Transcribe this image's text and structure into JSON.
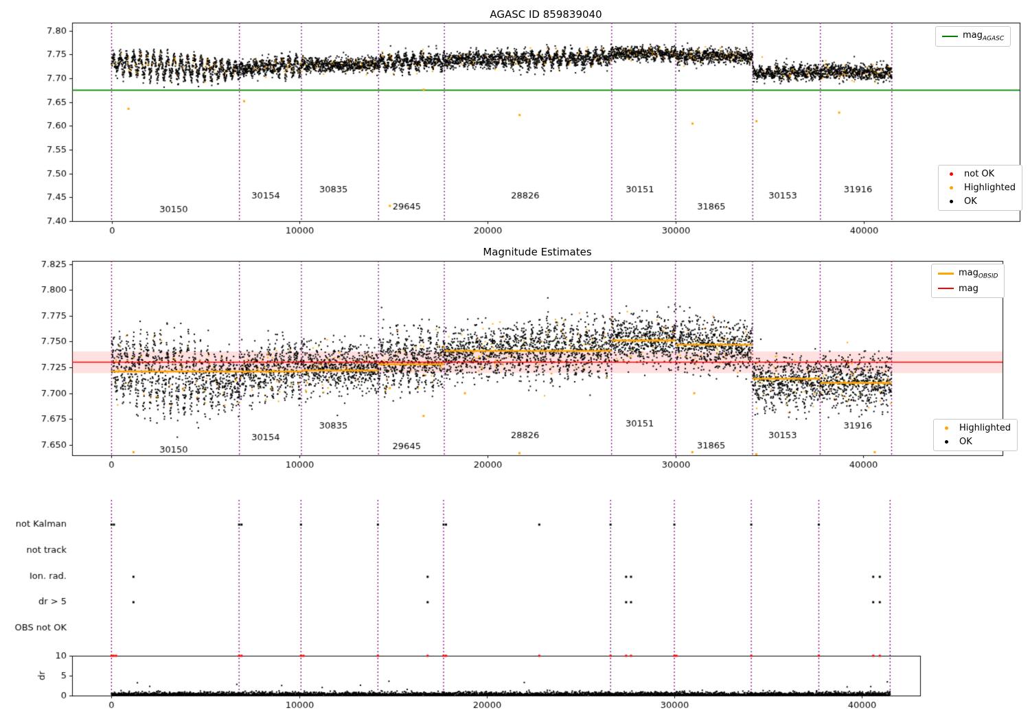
{
  "chart_data": [
    {
      "type": "scatter",
      "title": "AGASC ID 859839040",
      "xlim": [
        -2100,
        48300
      ],
      "ylim": [
        7.4,
        7.817
      ],
      "xticks": [
        0,
        10000,
        20000,
        30000,
        40000
      ],
      "xtick_labels": [
        "0",
        "10000",
        "20000",
        "30000",
        "40000"
      ],
      "yticks": [
        7.4,
        7.45,
        7.5,
        7.55,
        7.6,
        7.65,
        7.7,
        7.75,
        7.8
      ],
      "ytick_labels": [
        "7.40",
        "7.45",
        "7.50",
        "7.55",
        "7.60",
        "7.65",
        "7.70",
        "7.75",
        "7.80"
      ],
      "colors": {
        "ok": "#000000",
        "highlighted": "#ffa500",
        "not_ok": "#ff0000",
        "boundary": "#800080"
      },
      "ref_line": {
        "label": "mag",
        "sub": "AGASC",
        "value": 7.675,
        "color": "#008000"
      },
      "segments": [
        {
          "obsid": "30150",
          "start": 0,
          "end": 6800,
          "mean": 7.732,
          "trend": -0.016,
          "osc_amp": 0.022,
          "osc_wavelength": 360,
          "noise": 0.008,
          "label_x": 3300,
          "label_y": 7.423
        },
        {
          "obsid": "30154",
          "start": 6800,
          "end": 10100,
          "mean": 7.72,
          "trend": 0.008,
          "osc_amp": 0.016,
          "osc_wavelength": 360,
          "noise": 0.008,
          "label_x": 8200,
          "label_y": 7.452
        },
        {
          "obsid": "30835",
          "start": 10100,
          "end": 14200,
          "mean": 7.728,
          "trend": 0,
          "osc_amp": 0.006,
          "osc_wavelength": 420,
          "noise": 0.0075,
          "label_x": 11800,
          "label_y": 7.466
        },
        {
          "obsid": "29645",
          "start": 14200,
          "end": 17700,
          "mean": 7.733,
          "trend": 0.004,
          "osc_amp": 0.01,
          "osc_wavelength": 420,
          "noise": 0.008,
          "label_x": 15700,
          "label_y": 7.43
        },
        {
          "obsid": "28826",
          "start": 17700,
          "end": 26600,
          "mean": 7.738,
          "trend": 0.006,
          "osc_amp": 0.01,
          "osc_wavelength": 420,
          "noise": 0.008,
          "label_x": 22000,
          "label_y": 7.452
        },
        {
          "obsid": "30151",
          "start": 26600,
          "end": 30000,
          "mean": 7.753,
          "trend": -0.002,
          "osc_amp": 0.008,
          "osc_wavelength": 420,
          "noise": 0.007,
          "label_x": 28100,
          "label_y": 7.466
        },
        {
          "obsid": "31865",
          "start": 30000,
          "end": 34100,
          "mean": 7.749,
          "trend": -0.004,
          "osc_amp": 0.01,
          "osc_wavelength": 420,
          "noise": 0.008,
          "label_x": 31900,
          "label_y": 7.43
        },
        {
          "obsid": "30153",
          "start": 34100,
          "end": 37700,
          "mean": 7.712,
          "trend": 0,
          "osc_amp": 0.006,
          "osc_wavelength": 420,
          "noise": 0.007,
          "label_x": 35700,
          "label_y": 7.452
        },
        {
          "obsid": "31916",
          "start": 37700,
          "end": 41500,
          "mean": 7.714,
          "trend": -0.002,
          "osc_amp": 0.008,
          "osc_wavelength": 420,
          "noise": 0.008,
          "label_x": 39700,
          "label_y": 7.466
        }
      ],
      "highlight_outliers": [
        [
          900,
          7.636
        ],
        [
          7050,
          7.652
        ],
        [
          14800,
          7.432
        ],
        [
          16600,
          7.676
        ],
        [
          21700,
          7.623
        ],
        [
          30900,
          7.605
        ],
        [
          34300,
          7.61
        ],
        [
          38700,
          7.628
        ]
      ],
      "legend_top": [
        {
          "marker": "line",
          "color": "#008000",
          "label": "mag",
          "sub": "AGASC",
          "thick": false
        }
      ],
      "legend_bottom": [
        {
          "marker": "dot",
          "color": "#ff0000",
          "label": "not OK"
        },
        {
          "marker": "dot",
          "color": "#ffa500",
          "label": "Highlighted"
        },
        {
          "marker": "dot",
          "color": "#000000",
          "label": "OK"
        }
      ]
    },
    {
      "type": "scatter",
      "title": "Magnitude Estimates",
      "xlim": [
        -2100,
        47400
      ],
      "ylim": [
        7.64,
        7.828
      ],
      "xticks": [
        0,
        10000,
        20000,
        30000,
        40000
      ],
      "xtick_labels": [
        "0",
        "10000",
        "20000",
        "30000",
        "40000"
      ],
      "yticks": [
        7.65,
        7.675,
        7.7,
        7.725,
        7.75,
        7.775,
        7.8,
        7.825
      ],
      "ytick_labels": [
        "7.650",
        "7.675",
        "7.700",
        "7.725",
        "7.750",
        "7.775",
        "7.800",
        "7.825"
      ],
      "colors": {
        "ok": "#000000",
        "highlighted": "#ffa500",
        "boundary": "#800080"
      },
      "mag_line": {
        "label": "mag",
        "value": 7.73,
        "color": "#ff0000"
      },
      "mag_band": [
        7.7195,
        7.7405
      ],
      "mag_band_color": "rgba(255,0,0,0.12)",
      "mag_obsid_color": "#ffa500",
      "segments": [
        {
          "obsid": "30150",
          "start": 0,
          "end": 6800,
          "mean": 7.726,
          "mag": 7.721,
          "trend": -0.018,
          "osc_amp": 0.024,
          "osc_wavelength": 360,
          "noise": 0.012,
          "label_x": 3300,
          "label_y": 7.645
        },
        {
          "obsid": "30154",
          "start": 6800,
          "end": 10100,
          "mean": 7.718,
          "mag": 7.721,
          "trend": 0.008,
          "osc_amp": 0.018,
          "osc_wavelength": 360,
          "noise": 0.012,
          "label_x": 8200,
          "label_y": 7.657
        },
        {
          "obsid": "30835",
          "start": 10100,
          "end": 14200,
          "mean": 7.725,
          "mag": 7.722,
          "trend": 0,
          "osc_amp": 0.008,
          "osc_wavelength": 420,
          "noise": 0.011,
          "label_x": 11800,
          "label_y": 7.668
        },
        {
          "obsid": "29645",
          "start": 14200,
          "end": 17700,
          "mean": 7.73,
          "mag": 7.728,
          "trend": 0.004,
          "osc_amp": 0.012,
          "osc_wavelength": 420,
          "noise": 0.012,
          "label_x": 15700,
          "label_y": 7.648
        },
        {
          "obsid": "28826",
          "start": 17700,
          "end": 26600,
          "mean": 7.738,
          "mag": 7.741,
          "trend": 0.006,
          "osc_amp": 0.012,
          "osc_wavelength": 420,
          "noise": 0.012,
          "label_x": 22000,
          "label_y": 7.659
        },
        {
          "obsid": "30151",
          "start": 26600,
          "end": 30000,
          "mean": 7.752,
          "mag": 7.751,
          "trend": -0.002,
          "osc_amp": 0.01,
          "osc_wavelength": 420,
          "noise": 0.011,
          "label_x": 28100,
          "label_y": 7.67
        },
        {
          "obsid": "31865",
          "start": 30000,
          "end": 34100,
          "mean": 7.748,
          "mag": 7.747,
          "trend": -0.004,
          "osc_amp": 0.012,
          "osc_wavelength": 420,
          "noise": 0.012,
          "label_x": 31900,
          "label_y": 7.649
        },
        {
          "obsid": "30153",
          "start": 34100,
          "end": 37700,
          "mean": 7.71,
          "mag": 7.714,
          "trend": 0,
          "osc_amp": 0.008,
          "osc_wavelength": 420,
          "noise": 0.011,
          "label_x": 35700,
          "label_y": 7.659
        },
        {
          "obsid": "31916",
          "start": 37700,
          "end": 41500,
          "mean": 7.712,
          "mag": 7.71,
          "trend": -0.002,
          "osc_amp": 0.01,
          "osc_wavelength": 420,
          "noise": 0.012,
          "label_x": 39700,
          "label_y": 7.668
        }
      ],
      "highlight_outliers": [
        [
          1170,
          7.643
        ],
        [
          16600,
          7.678
        ],
        [
          18800,
          7.7
        ],
        [
          21700,
          7.642
        ],
        [
          30900,
          7.643
        ],
        [
          31000,
          7.7
        ],
        [
          34300,
          7.641
        ],
        [
          40600,
          7.643
        ],
        [
          14800,
          7.705
        ]
      ],
      "legend_top": [
        {
          "marker": "line",
          "color": "#ffa500",
          "label": "mag",
          "sub": "OBSID",
          "thick": true
        },
        {
          "marker": "line",
          "color": "#ff0000",
          "label": "mag",
          "thick": false
        }
      ],
      "legend_bottom": [
        {
          "marker": "dot",
          "color": "#ffa500",
          "label": "Highlighted"
        },
        {
          "marker": "dot",
          "color": "#000000",
          "label": "OK"
        }
      ]
    },
    {
      "type": "flags",
      "xlim": [
        -2100,
        43100
      ],
      "xticks": [
        0,
        10000,
        20000,
        30000,
        40000
      ],
      "xtick_labels": [
        "0",
        "10000",
        "20000",
        "30000",
        "40000"
      ],
      "rows": [
        "not Kalman",
        "not track",
        "Ion. rad.",
        "dr > 5",
        "OBS not OK"
      ],
      "row_points": {
        "not Kalman": [
          0,
          130,
          6800,
          6930,
          10100,
          14200,
          17700,
          17830,
          22800,
          26600,
          30000,
          34100,
          37700
        ],
        "not track": [],
        "Ion. rad.": [
          1170,
          16850,
          27430,
          27690,
          40600,
          40950
        ],
        "dr > 5": [
          1170,
          16850,
          27430,
          27690,
          40600,
          40950
        ],
        "OBS not OK": []
      },
      "flag_color": "#000000",
      "boundary_color": "#800080",
      "dr": {
        "ylabel": "dr",
        "ylim": [
          0,
          10
        ],
        "yticks": [
          0,
          5,
          10
        ],
        "ytick_labels": [
          "0",
          "5",
          "10"
        ],
        "threshold": 10,
        "point_color": "#000000",
        "clipped_color": "#ff0000",
        "red_x": [
          0,
          110,
          240,
          6800,
          6930,
          10100,
          10230,
          14200,
          16850,
          17700,
          17830,
          22800,
          26600,
          27430,
          27690,
          30000,
          30110,
          34100,
          37700,
          40600,
          40950
        ]
      }
    }
  ]
}
